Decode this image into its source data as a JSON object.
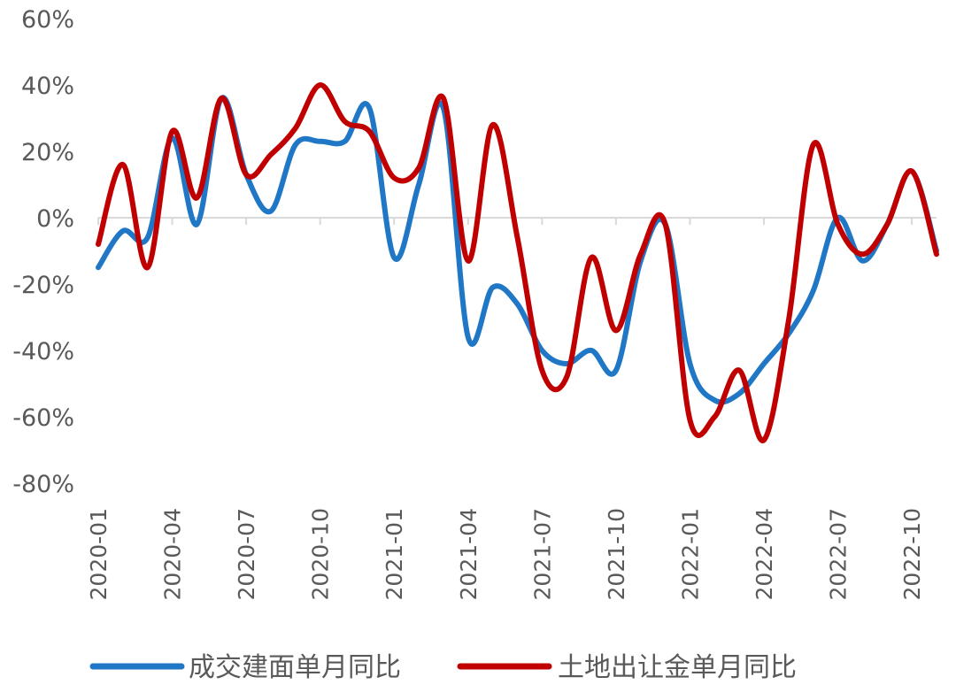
{
  "chart_data": {
    "type": "line",
    "title": "",
    "xlabel": "",
    "ylabel": "",
    "ylim": [
      -80,
      60
    ],
    "y_ticks": [
      "60%",
      "40%",
      "20%",
      "0%",
      "-20%",
      "-40%",
      "-60%",
      "-80%"
    ],
    "y_tick_values": [
      60,
      40,
      20,
      0,
      -20,
      -40,
      -60,
      -80
    ],
    "x_tick_labels": [
      "2020-01",
      "2020-04",
      "2020-07",
      "2020-10",
      "2021-01",
      "2021-04",
      "2021-07",
      "2021-10",
      "2022-01",
      "2022-04",
      "2022-07",
      "2022-10"
    ],
    "x": [
      "2020-01",
      "2020-02",
      "2020-03",
      "2020-04",
      "2020-05",
      "2020-06",
      "2020-07",
      "2020-08",
      "2020-09",
      "2020-10",
      "2020-11",
      "2020-12",
      "2021-01",
      "2021-02",
      "2021-03",
      "2021-04",
      "2021-05",
      "2021-06",
      "2021-07",
      "2021-08",
      "2021-09",
      "2021-10",
      "2021-11",
      "2021-12",
      "2022-01",
      "2022-02",
      "2022-03",
      "2022-04",
      "2022-05",
      "2022-06",
      "2022-07",
      "2022-08",
      "2022-09",
      "2022-10",
      "2022-11"
    ],
    "legend_position": "bottom",
    "grid": false,
    "series": [
      {
        "name": "成交建面单月同比",
        "color": "#1F77C5",
        "values": [
          -15,
          -4,
          -6,
          24,
          -2,
          36,
          13,
          2,
          22,
          23,
          23,
          33,
          -12,
          10,
          33,
          -36,
          -21,
          -26,
          -40,
          -44,
          -40,
          -46,
          -13,
          -2,
          -44,
          -55,
          -53,
          -44,
          -35,
          -22,
          0,
          -13,
          -2,
          14,
          -10
        ]
      },
      {
        "name": "土地出让金单月同比",
        "color": "#C00000",
        "values": [
          -8,
          16,
          -15,
          26,
          6,
          36,
          13,
          19,
          27,
          40,
          29,
          26,
          12,
          15,
          36,
          -13,
          28,
          -6,
          -46,
          -48,
          -12,
          -34,
          -11,
          -2,
          -61,
          -60,
          -46,
          -67,
          -31,
          22,
          -2,
          -11,
          -2,
          14,
          -11
        ]
      }
    ]
  }
}
